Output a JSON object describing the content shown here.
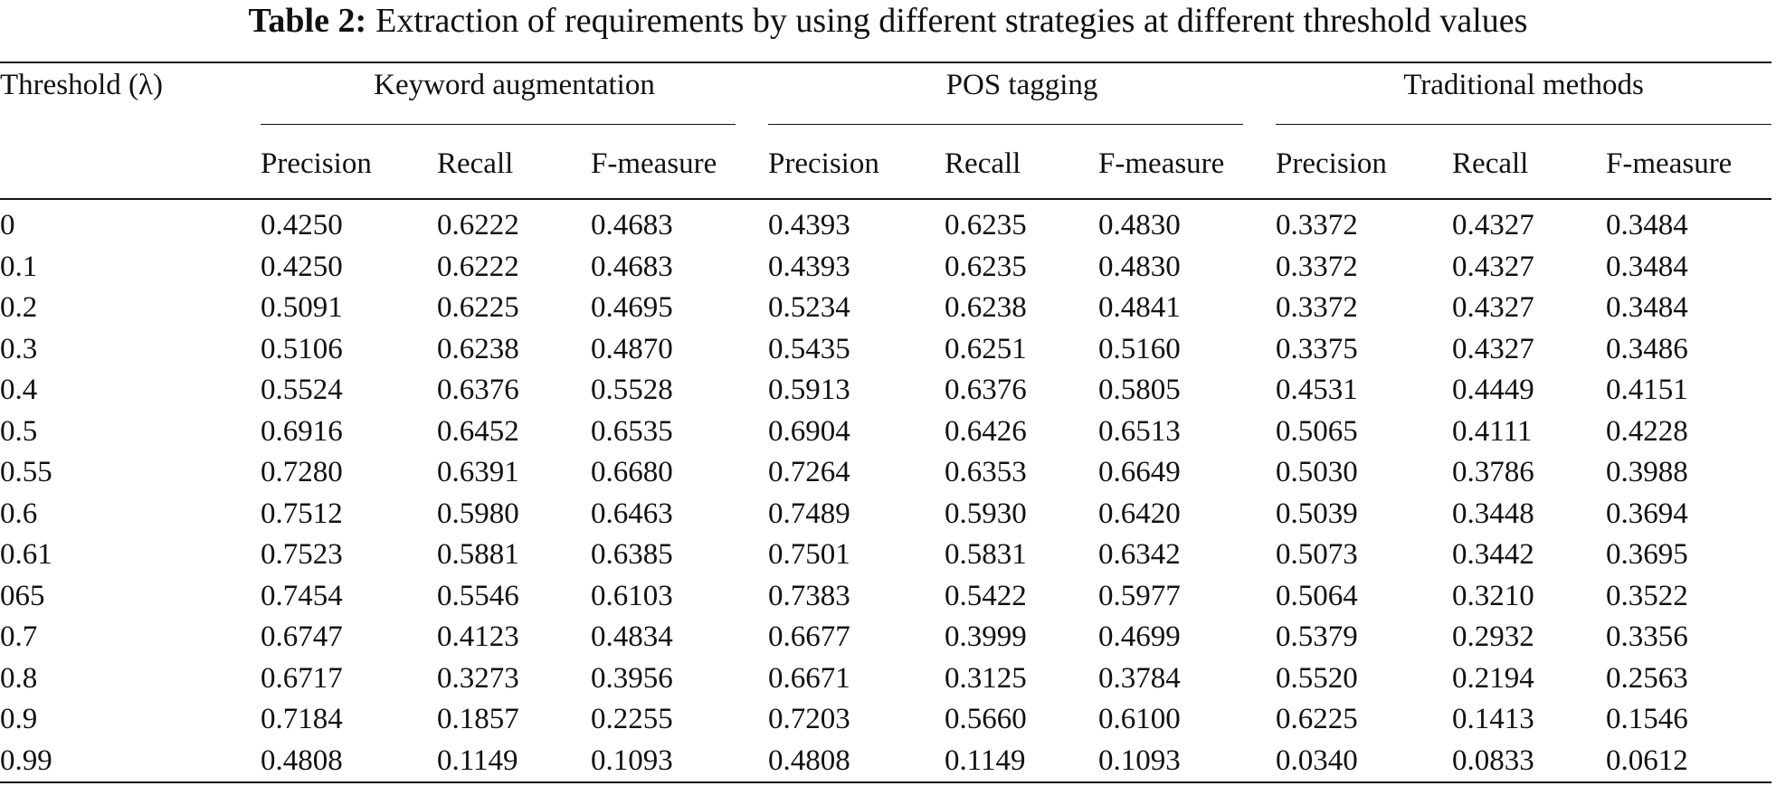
{
  "caption": {
    "label": "Table 2:",
    "text": "Extraction of requirements by using different strategies at different threshold values"
  },
  "table": {
    "first_header": "Threshold (λ)",
    "groups": [
      {
        "name": "Keyword augmentation",
        "metrics": [
          "Precision",
          "Recall",
          "F-measure"
        ]
      },
      {
        "name": "POS tagging",
        "metrics": [
          "Precision",
          "Recall",
          "F-measure"
        ]
      },
      {
        "name": "Traditional methods",
        "metrics": [
          "Precision",
          "Recall",
          "F-measure"
        ]
      }
    ],
    "rows": [
      [
        "0",
        "0.4250",
        "0.6222",
        "0.4683",
        "0.4393",
        "0.6235",
        "0.4830",
        "0.3372",
        "0.4327",
        "0.3484"
      ],
      [
        "0.1",
        "0.4250",
        "0.6222",
        "0.4683",
        "0.4393",
        "0.6235",
        "0.4830",
        "0.3372",
        "0.4327",
        "0.3484"
      ],
      [
        "0.2",
        "0.5091",
        "0.6225",
        "0.4695",
        "0.5234",
        "0.6238",
        "0.4841",
        "0.3372",
        "0.4327",
        "0.3484"
      ],
      [
        "0.3",
        "0.5106",
        "0.6238",
        "0.4870",
        "0.5435",
        "0.6251",
        "0.5160",
        "0.3375",
        "0.4327",
        "0.3486"
      ],
      [
        "0.4",
        "0.5524",
        "0.6376",
        "0.5528",
        "0.5913",
        "0.6376",
        "0.5805",
        "0.4531",
        "0.4449",
        "0.4151"
      ],
      [
        "0.5",
        "0.6916",
        "0.6452",
        "0.6535",
        "0.6904",
        "0.6426",
        "0.6513",
        "0.5065",
        "0.4111",
        "0.4228"
      ],
      [
        "0.55",
        "0.7280",
        "0.6391",
        "0.6680",
        "0.7264",
        "0.6353",
        "0.6649",
        "0.5030",
        "0.3786",
        "0.3988"
      ],
      [
        "0.6",
        "0.7512",
        "0.5980",
        "0.6463",
        "0.7489",
        "0.5930",
        "0.6420",
        "0.5039",
        "0.3448",
        "0.3694"
      ],
      [
        "0.61",
        "0.7523",
        "0.5881",
        "0.6385",
        "0.7501",
        "0.5831",
        "0.6342",
        "0.5073",
        "0.3442",
        "0.3695"
      ],
      [
        "065",
        "0.7454",
        "0.5546",
        "0.6103",
        "0.7383",
        "0.5422",
        "0.5977",
        "0.5064",
        "0.3210",
        "0.3522"
      ],
      [
        "0.7",
        "0.6747",
        "0.4123",
        "0.4834",
        "0.6677",
        "0.3999",
        "0.4699",
        "0.5379",
        "0.2932",
        "0.3356"
      ],
      [
        "0.8",
        "0.6717",
        "0.3273",
        "0.3956",
        "0.6671",
        "0.3125",
        "0.3784",
        "0.5520",
        "0.2194",
        "0.2563"
      ],
      [
        "0.9",
        "0.7184",
        "0.1857",
        "0.2255",
        "0.7203",
        "0.5660",
        "0.6100",
        "0.6225",
        "0.1413",
        "0.1546"
      ],
      [
        "0.99",
        "0.4808",
        "0.1149",
        "0.1093",
        "0.4808",
        "0.1149",
        "0.1093",
        "0.0340",
        "0.0833",
        "0.0612"
      ]
    ]
  }
}
